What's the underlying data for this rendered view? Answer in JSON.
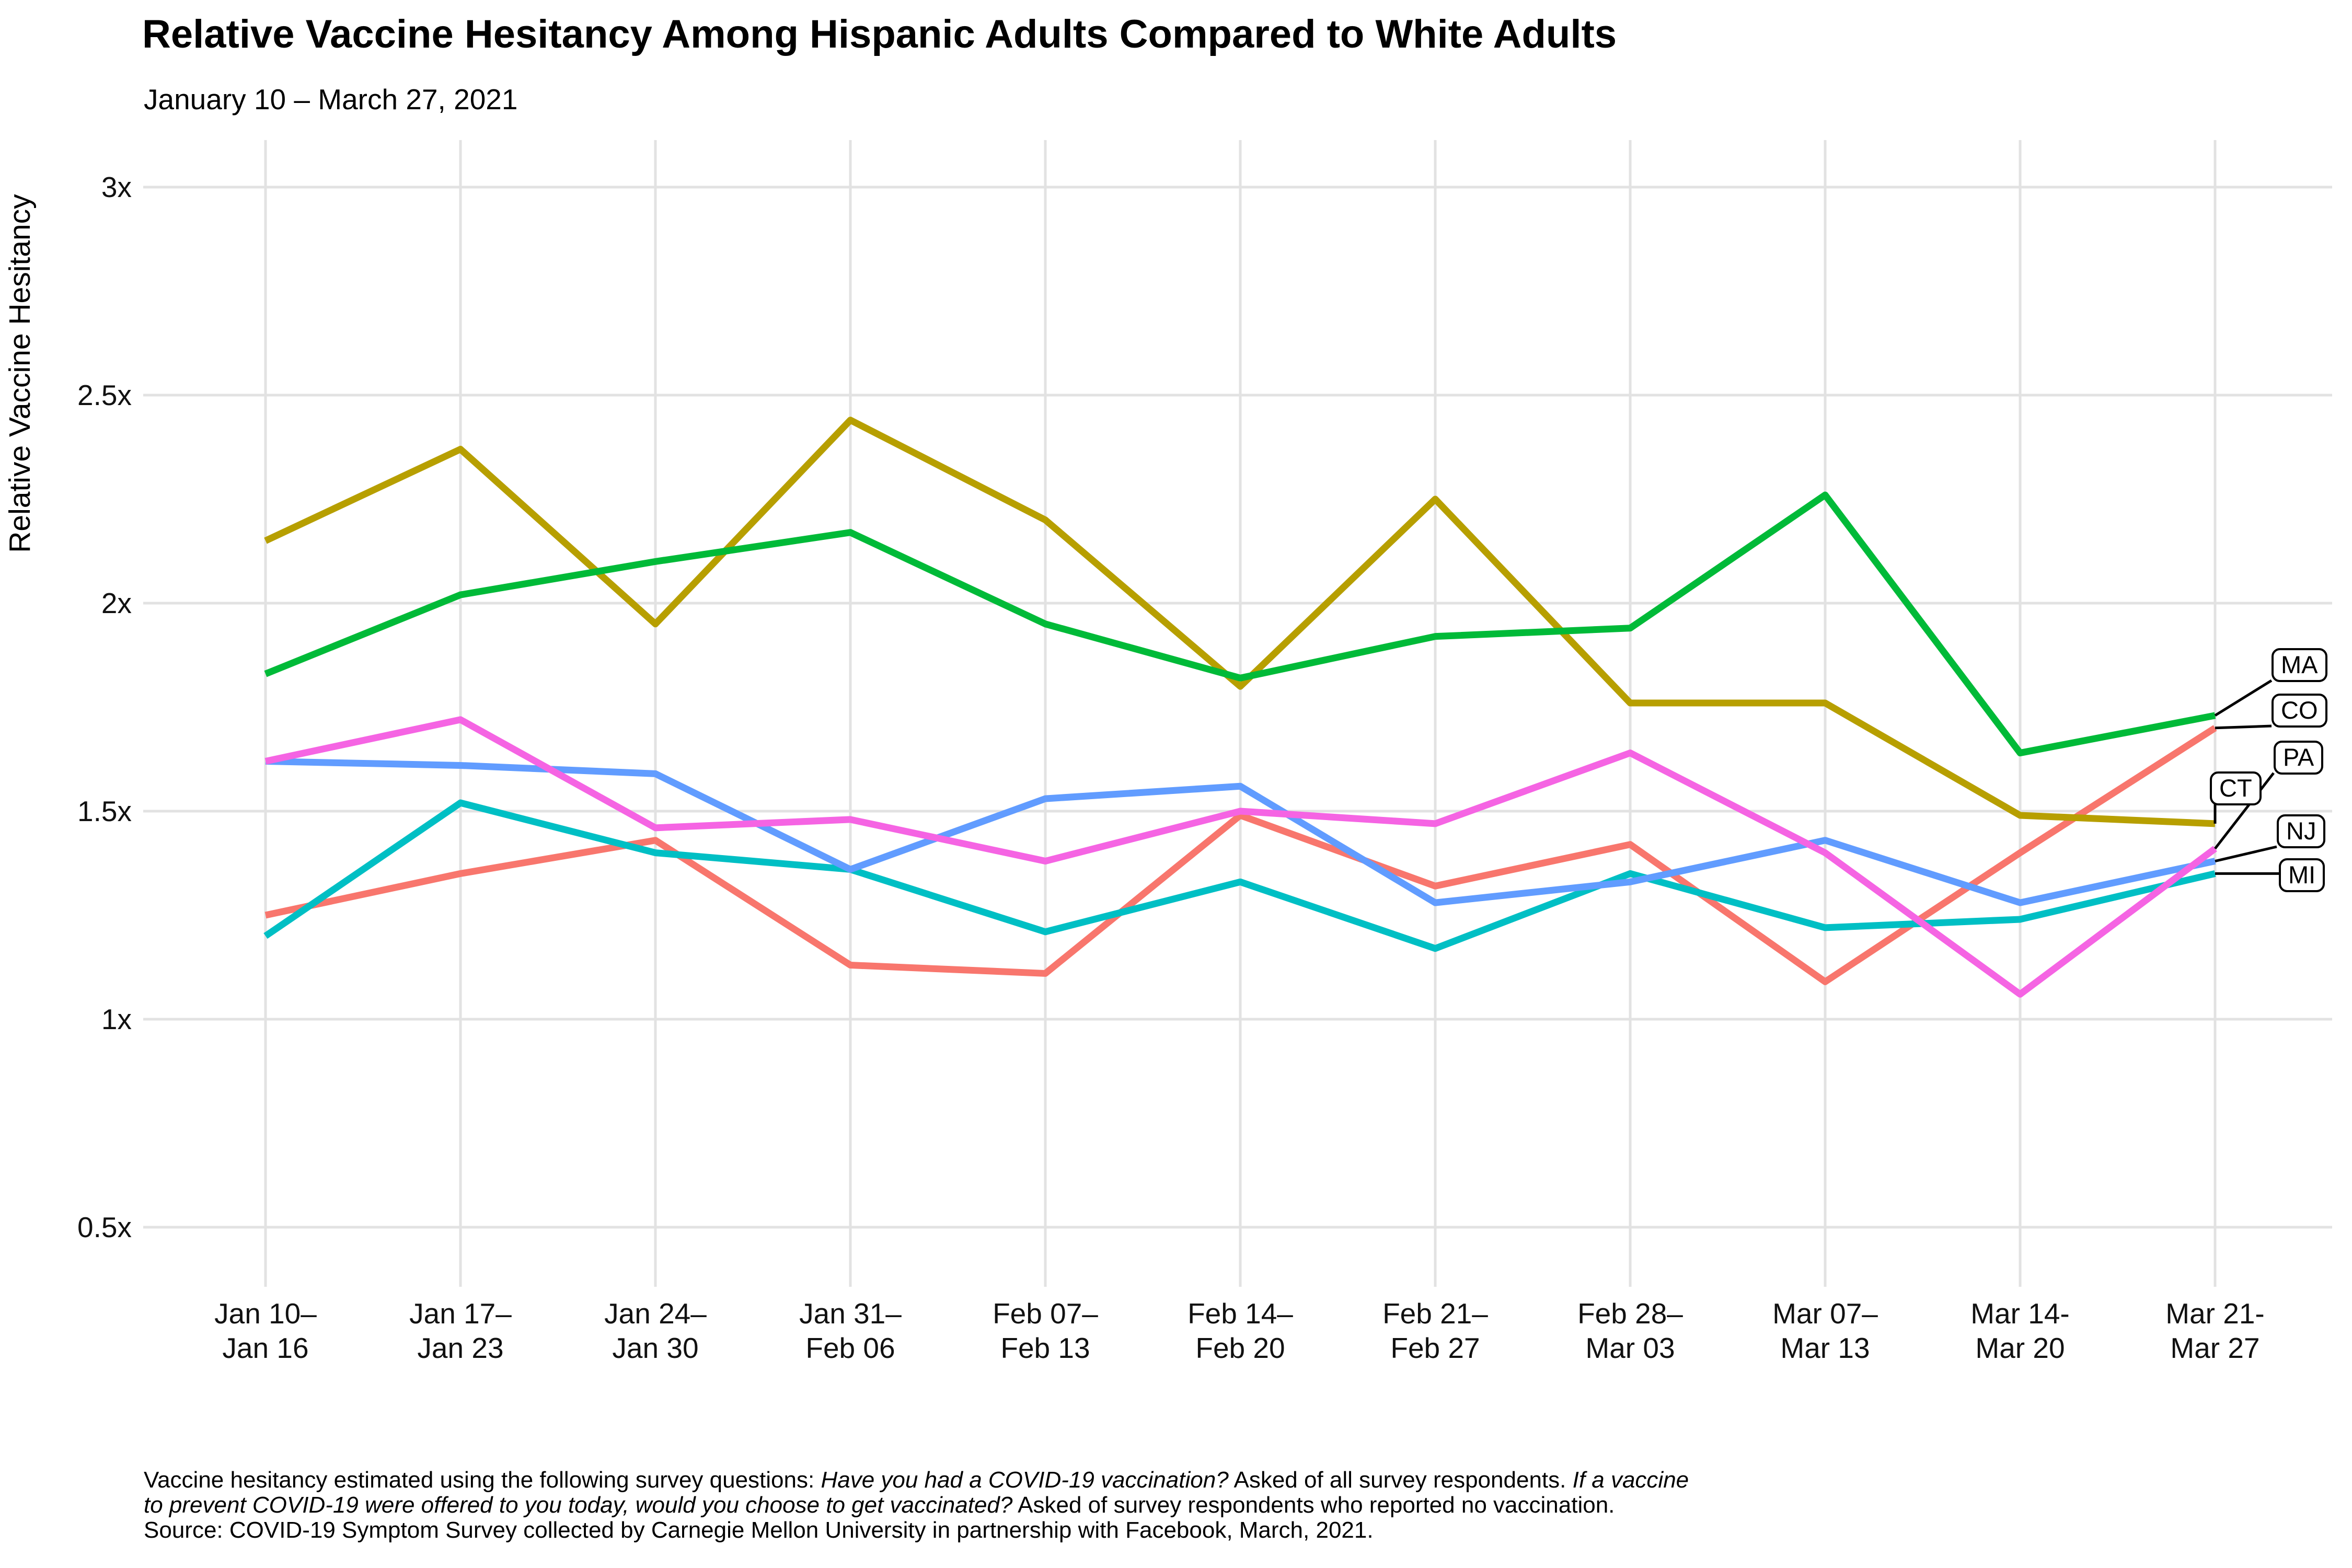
{
  "chart": {
    "title": "Relative Vaccine Hesitancy Among Hispanic Adults Compared to White Adults",
    "subtitle": "January 10 – March 27, 2021",
    "ylabel": "Relative Vaccine Hesitancy"
  },
  "chart_data": {
    "type": "line",
    "x_categories": [
      "Jan 10–\nJan 16",
      "Jan 17–\nJan 23",
      "Jan 24–\nJan 30",
      "Jan 31–\nFeb 06",
      "Feb 07–\nFeb 13",
      "Feb 14–\nFeb 20",
      "Feb 21–\nFeb 27",
      "Feb 28–\nMar 03",
      "Mar 07–\nMar 13",
      "Mar 14-\nMar 20",
      "Mar 21-\nMar 27"
    ],
    "y_ticks": [
      {
        "v": 0.5,
        "label": "0.5x"
      },
      {
        "v": 1.0,
        "label": "1x"
      },
      {
        "v": 1.5,
        "label": "1.5x"
      },
      {
        "v": 2.0,
        "label": "2x"
      },
      {
        "v": 2.5,
        "label": "2.5x"
      },
      {
        "v": 3.0,
        "label": "3x"
      }
    ],
    "ylim": [
      0.36,
      3.11
    ],
    "grid": true,
    "legend_position": "right-edge-labels",
    "series": [
      {
        "label": "CO",
        "color": "#F8766D",
        "values": [
          1.25,
          1.35,
          1.43,
          1.13,
          1.11,
          1.49,
          1.32,
          1.42,
          1.09,
          1.4,
          1.7
        ],
        "label_pos": [
          4346,
          1327
        ]
      },
      {
        "label": "CT",
        "color": "#B79F00",
        "values": [
          2.15,
          2.37,
          1.95,
          2.44,
          2.2,
          1.8,
          2.25,
          1.76,
          1.76,
          1.49,
          1.47
        ],
        "label_pos": [
          4228,
          1476
        ]
      },
      {
        "label": "MA",
        "color": "#00BA38",
        "values": [
          1.83,
          2.02,
          2.1,
          2.17,
          1.95,
          1.82,
          1.92,
          1.94,
          2.26,
          1.64,
          1.73
        ],
        "label_pos": [
          4346,
          1240
        ]
      },
      {
        "label": "MI",
        "color": "#00BFC4",
        "values": [
          1.2,
          1.52,
          1.4,
          1.36,
          1.21,
          1.33,
          1.17,
          1.35,
          1.22,
          1.24,
          1.35
        ],
        "label_pos": [
          4360,
          1642
        ]
      },
      {
        "label": "NJ",
        "color": "#619CFF",
        "values": [
          1.62,
          1.61,
          1.59,
          1.36,
          1.53,
          1.56,
          1.28,
          1.33,
          1.43,
          1.28,
          1.38
        ],
        "label_pos": [
          4356,
          1558
        ]
      },
      {
        "label": "PA",
        "color": "#F564E3",
        "values": [
          1.62,
          1.72,
          1.46,
          1.48,
          1.38,
          1.5,
          1.47,
          1.64,
          1.4,
          1.06,
          1.41
        ],
        "label_pos": [
          4350,
          1417
        ]
      }
    ]
  },
  "footer": {
    "lines": [
      [
        {
          "t": "Vaccine hesitancy estimated using the following survey questions: ",
          "i": false
        },
        {
          "t": "Have you had a COVID-19 vaccination?",
          "i": true
        },
        {
          "t": " Asked of all survey respondents. ",
          "i": false
        },
        {
          "t": "If a vaccine",
          "i": true
        }
      ],
      [
        {
          "t": "to prevent COVID-19 were offered to you today, would you choose to get vaccinated?",
          "i": true
        },
        {
          "t": " Asked of survey respondents who reported no vaccination.",
          "i": false
        }
      ],
      [
        {
          "t": "Source: COVID-19 Symptom Survey collected by Carnegie Mellon University in partnership with Facebook, March, 2021.",
          "i": false
        }
      ]
    ]
  },
  "style": {
    "gridline_color": "#E2E2E2",
    "leader_color": "#000000",
    "background": "#FFFFFF"
  }
}
